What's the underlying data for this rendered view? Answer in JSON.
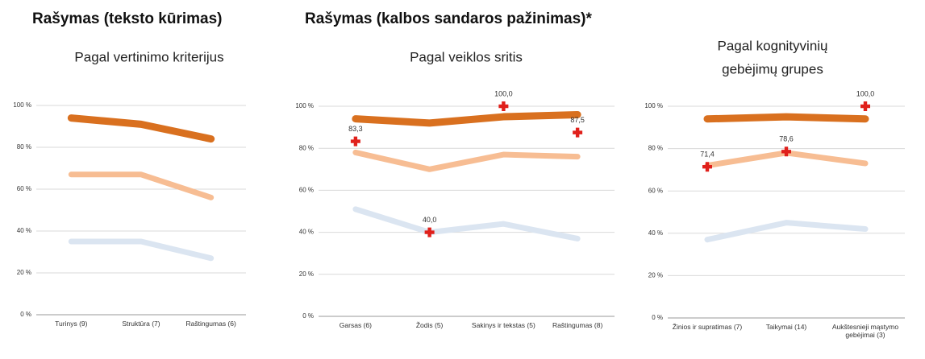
{
  "headers": [
    "Rašymas (teksto kūrimas)",
    "Rašymas (kalbos sandaros pažinimas)*"
  ],
  "chart_data": [
    {
      "type": "line",
      "subtitle": [
        "Pagal vertinimo kriterijus"
      ],
      "categories": [
        "Turinys (9)",
        "Struktūra (7)",
        "Raštingumas (6)"
      ],
      "ylim": [
        0,
        100
      ],
      "yticks": [
        {
          "value": 0,
          "label": "0 %"
        },
        {
          "value": 20,
          "label": "20 %"
        },
        {
          "value": 40,
          "label": "40 %"
        },
        {
          "value": 60,
          "label": "60 %"
        },
        {
          "value": 80,
          "label": "80 %"
        },
        {
          "value": 100,
          "label": "100 %"
        }
      ],
      "grid": true,
      "series": [
        {
          "color": "#d9701f",
          "values": [
            94,
            91,
            84
          ]
        },
        {
          "color": "#f7bd93",
          "values": [
            67,
            67,
            56
          ]
        },
        {
          "color": "#dbe5f1",
          "values": [
            35,
            35,
            27
          ]
        }
      ]
    },
    {
      "type": "line",
      "subtitle": [
        "Pagal veiklos sritis"
      ],
      "categories": [
        "Garsas (6)",
        "Žodis (5)",
        "Sakinys ir tekstas (5)",
        "Raštingumas (8)"
      ],
      "ylim": [
        0,
        100
      ],
      "yticks": [
        {
          "value": 0,
          "label": "0 %"
        },
        {
          "value": 20,
          "label": "20 %"
        },
        {
          "value": 40,
          "label": "40 %"
        },
        {
          "value": 60,
          "label": "60 %"
        },
        {
          "value": 80,
          "label": "80 %"
        },
        {
          "value": 100,
          "label": "100 %"
        }
      ],
      "grid": true,
      "series": [
        {
          "color": "#d9701f",
          "values": [
            94,
            92,
            95,
            96
          ]
        },
        {
          "color": "#f7bd93",
          "values": [
            78,
            70,
            77,
            76
          ]
        },
        {
          "color": "#dbe5f1",
          "values": [
            51,
            40,
            44,
            37
          ]
        },
        {
          "color": "#e0201b",
          "marker": "cross",
          "values": [
            83.3,
            40.0,
            100.0,
            87.5
          ],
          "value_labels": [
            "83,3",
            "40,0",
            "100,0",
            "87,5"
          ]
        }
      ]
    },
    {
      "type": "line",
      "subtitle": [
        "Pagal kognityvinių",
        "gebėjimų grupes"
      ],
      "categories": [
        "Žinios ir supratimas (7)",
        "Taikymai (14)",
        "Aukštesnieji mąstymo gebėjimai (3)"
      ],
      "ylim": [
        0,
        100
      ],
      "yticks": [
        {
          "value": 0,
          "label": "0 %"
        },
        {
          "value": 20,
          "label": "20 %"
        },
        {
          "value": 40,
          "label": "40 %"
        },
        {
          "value": 60,
          "label": "60 %"
        },
        {
          "value": 80,
          "label": "80 %"
        },
        {
          "value": 100,
          "label": "100 %"
        }
      ],
      "grid": true,
      "series": [
        {
          "color": "#d9701f",
          "values": [
            94,
            95,
            94
          ]
        },
        {
          "color": "#f7bd93",
          "values": [
            72,
            78,
            73
          ]
        },
        {
          "color": "#dbe5f1",
          "values": [
            37,
            45,
            42
          ]
        },
        {
          "color": "#e0201b",
          "marker": "cross",
          "values": [
            71.4,
            78.6,
            100.0
          ],
          "value_labels": [
            "71,4",
            "78,6",
            "100,0"
          ]
        }
      ]
    }
  ]
}
